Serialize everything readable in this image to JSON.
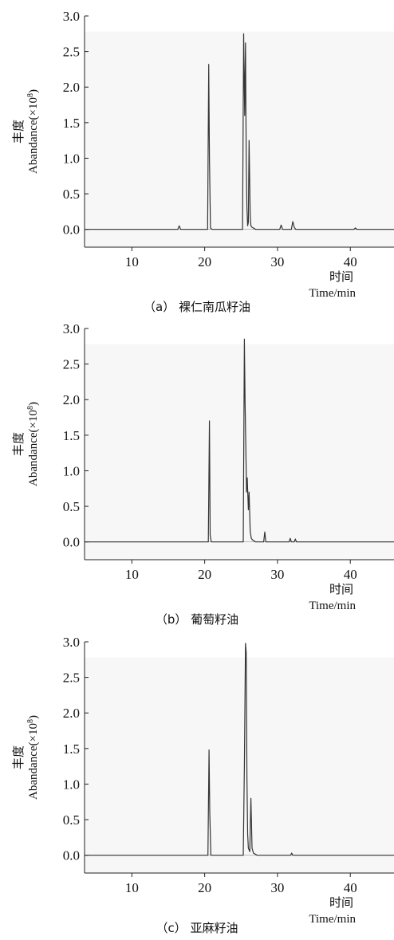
{
  "chart_data": [
    {
      "type": "line",
      "caption": "（a） 裸仁南瓜籽油",
      "ylabel_cn": "丰度",
      "ylabel": "Abandance(×10",
      "ylabel_exp": "8",
      "ylabel_close": ")",
      "xlabel_cn": "时间",
      "xlabel": "Time/min",
      "xlim": [
        3.5,
        46
      ],
      "ylim": [
        -0.25,
        3.0
      ],
      "xticks": [
        10,
        20,
        30,
        40
      ],
      "yticks": [
        0.0,
        0.5,
        1.0,
        1.5,
        2.0,
        2.5,
        3.0
      ],
      "ytick_labels": [
        "0.0",
        "0.5",
        "1.0",
        "1.5",
        "2.0",
        "2.5",
        "3.0"
      ],
      "series": [
        {
          "color": "#333333",
          "x": [
            3.5,
            16.3,
            16.5,
            16.7,
            20.4,
            20.55,
            20.65,
            20.8,
            21.0,
            25.2,
            25.35,
            25.5,
            25.6,
            25.7,
            25.8,
            25.9,
            26.0,
            26.1,
            26.25,
            26.35,
            26.5,
            27.0,
            30.3,
            30.5,
            30.7,
            31.9,
            32.1,
            32.3,
            32.5,
            40.5,
            40.7,
            40.9,
            46
          ],
          "y": [
            0.0,
            0.0,
            0.05,
            0.0,
            0.0,
            2.32,
            1.0,
            0.02,
            0.0,
            0.0,
            2.75,
            1.6,
            2.62,
            1.0,
            0.3,
            0.05,
            0.1,
            1.25,
            0.2,
            0.05,
            0.03,
            0.0,
            0.0,
            0.06,
            0.0,
            0.0,
            0.11,
            0.03,
            0.0,
            0.0,
            0.02,
            0.0,
            0.0
          ]
        }
      ]
    },
    {
      "type": "line",
      "caption": "（b） 葡萄籽油",
      "ylabel_cn": "丰度",
      "ylabel": "Abandance(×10",
      "ylabel_exp": "8",
      "ylabel_close": ")",
      "xlabel_cn": "时间",
      "xlabel": "Time/min",
      "xlim": [
        3.5,
        46
      ],
      "ylim": [
        -0.25,
        3.0
      ],
      "xticks": [
        10,
        20,
        30,
        40
      ],
      "yticks": [
        0.0,
        0.5,
        1.0,
        1.5,
        2.0,
        2.5,
        3.0
      ],
      "ytick_labels": [
        "0.0",
        "0.5",
        "1.0",
        "1.5",
        "2.0",
        "2.5",
        "3.0"
      ],
      "series": [
        {
          "color": "#333333",
          "x": [
            3.5,
            20.5,
            20.65,
            20.75,
            20.9,
            25.3,
            25.45,
            25.55,
            25.65,
            25.75,
            25.85,
            26.0,
            26.1,
            26.25,
            26.4,
            26.55,
            27.0,
            28.1,
            28.25,
            28.4,
            31.6,
            31.75,
            31.9,
            32.3,
            32.45,
            32.6,
            46
          ],
          "y": [
            0.0,
            0.0,
            1.7,
            0.1,
            0.0,
            0.0,
            2.85,
            1.95,
            1.35,
            0.7,
            0.9,
            0.45,
            0.7,
            0.15,
            0.05,
            0.03,
            0.0,
            0.0,
            0.14,
            0.0,
            0.0,
            0.05,
            0.0,
            0.0,
            0.04,
            0.0,
            0.0
          ]
        }
      ]
    },
    {
      "type": "line",
      "caption": "（c） 亚麻籽油",
      "ylabel_cn": "丰度",
      "ylabel": "Abandance(×10",
      "ylabel_exp": "8",
      "ylabel_close": ")",
      "xlabel_cn": "时间",
      "xlabel": "Time/min",
      "xlim": [
        3.5,
        46
      ],
      "ylim": [
        -0.25,
        3.0
      ],
      "xticks": [
        10,
        20,
        30,
        40
      ],
      "yticks": [
        0.0,
        0.5,
        1.0,
        1.5,
        2.0,
        2.5,
        3.0
      ],
      "ytick_labels": [
        "0.0",
        "0.5",
        "1.0",
        "1.5",
        "2.0",
        "2.5",
        "3.0"
      ],
      "series": [
        {
          "color": "#333333",
          "x": [
            3.5,
            20.45,
            20.6,
            20.7,
            20.85,
            25.3,
            25.45,
            25.6,
            25.7,
            25.8,
            25.9,
            26.0,
            26.2,
            26.35,
            26.5,
            26.7,
            27.2,
            31.8,
            31.95,
            32.1,
            46
          ],
          "y": [
            0.0,
            0.0,
            1.48,
            0.6,
            0.0,
            0.0,
            1.25,
            2.98,
            2.85,
            1.1,
            0.3,
            0.1,
            0.05,
            0.8,
            0.1,
            0.03,
            0.0,
            0.0,
            0.03,
            0.0,
            0.0
          ]
        }
      ]
    }
  ]
}
